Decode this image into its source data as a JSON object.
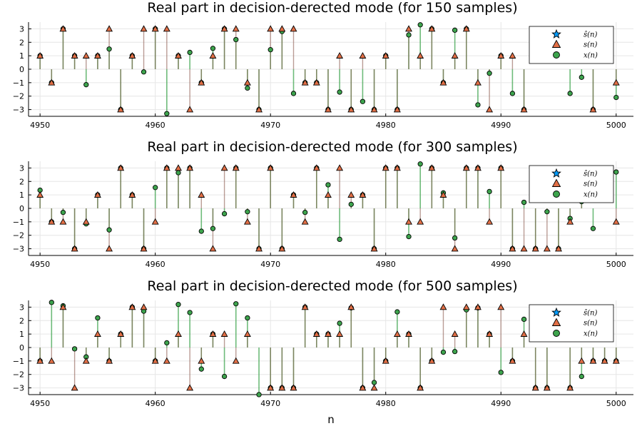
{
  "colors": {
    "shat": "#009af9",
    "s": "#e26f46",
    "x": "#3da44d",
    "grid": "#e6e6e6",
    "axis": "#000000"
  },
  "chart_data": [
    {
      "type": "scatter",
      "title": "Real part in decision-derected mode (for 150 samples)",
      "xlabel": "",
      "xlim": [
        4949,
        5001.5
      ],
      "ylim": [
        -3.5,
        3.5
      ],
      "xticks": [
        4950,
        4960,
        4970,
        4980,
        4990,
        5000
      ],
      "yticks": [
        -3,
        -2,
        -1,
        0,
        1,
        2,
        3
      ],
      "grid": true,
      "legend": "top-right",
      "legend_entries": [
        "ŝ(n)",
        "s(n)",
        "x(n)"
      ],
      "x": [
        4950,
        4951,
        4952,
        4953,
        4954,
        4955,
        4956,
        4957,
        4958,
        4959,
        4960,
        4961,
        4962,
        4963,
        4964,
        4965,
        4966,
        4967,
        4968,
        4969,
        4970,
        4971,
        4972,
        4973,
        4974,
        4975,
        4976,
        4977,
        4978,
        4979,
        4980,
        4981,
        4982,
        4983,
        4984,
        4985,
        4986,
        4987,
        4988,
        4989,
        4990,
        4991,
        4992,
        4993,
        4994,
        4995,
        4996,
        4997,
        4998,
        4999,
        5000
      ],
      "s": [
        1,
        -1,
        3,
        1,
        1,
        1,
        3,
        -3,
        1,
        3,
        3,
        3,
        1,
        -3,
        -1,
        1,
        3,
        3,
        -1,
        -3,
        3,
        3,
        3,
        -1,
        -1,
        -3,
        1,
        -3,
        1,
        -3,
        1,
        -3,
        3,
        1,
        3,
        -1,
        1,
        3,
        -1,
        -3,
        1,
        1,
        -3,
        null,
        null,
        null,
        null,
        null,
        -3,
        null,
        -1
      ],
      "x_vals": [
        1,
        -1,
        3,
        1,
        -1.15,
        1,
        1.5,
        -3,
        1,
        -0.2,
        3,
        -3.3,
        1,
        1.25,
        -1,
        1.55,
        3,
        2.2,
        -1.4,
        -3,
        1.45,
        2.8,
        -1.8,
        -1,
        -1,
        -3,
        -1.7,
        -3,
        -2.4,
        -3,
        1,
        -3,
        2.55,
        3.3,
        3,
        -1,
        2.9,
        3,
        -2.65,
        -0.3,
        1,
        -1.8,
        -3,
        null,
        null,
        null,
        -1.8,
        -0.6,
        -3,
        null,
        -2.1
      ]
    },
    {
      "type": "scatter",
      "title": "Real part in decision-derected mode (for 300 samples)",
      "xlabel": "",
      "xlim": [
        4949,
        5001.5
      ],
      "ylim": [
        -3.5,
        3.5
      ],
      "xticks": [
        4950,
        4960,
        4970,
        4980,
        4990,
        5000
      ],
      "yticks": [
        -3,
        -2,
        -1,
        0,
        1,
        2,
        3
      ],
      "grid": true,
      "legend": "top-right",
      "legend_entries": [
        "ŝ(n)",
        "s(n)",
        "x(n)"
      ],
      "x": [
        4950,
        4951,
        4952,
        4953,
        4954,
        4955,
        4956,
        4957,
        4958,
        4959,
        4960,
        4961,
        4962,
        4963,
        4964,
        4965,
        4966,
        4967,
        4968,
        4969,
        4970,
        4971,
        4972,
        4973,
        4974,
        4975,
        4976,
        4977,
        4978,
        4979,
        4980,
        4981,
        4982,
        4983,
        4984,
        4985,
        4986,
        4987,
        4988,
        4989,
        4990,
        4991,
        4992,
        4993,
        4994,
        4995,
        4996,
        4997,
        4998,
        4999,
        5000
      ],
      "s": [
        1,
        -1,
        -1,
        -3,
        -1,
        1,
        -3,
        3,
        1,
        -3,
        -1,
        3,
        3,
        3,
        1,
        -3,
        3,
        3,
        -1,
        -3,
        3,
        -3,
        1,
        -1,
        3,
        1,
        3,
        1,
        1,
        -3,
        3,
        3,
        -1,
        -1,
        3,
        1,
        -3,
        3,
        3,
        -1,
        3,
        -3,
        -3,
        -3,
        -3,
        -3,
        -1,
        1,
        null,
        null,
        -1
      ],
      "x_vals": [
        1.35,
        -1,
        -0.3,
        -3,
        -1.15,
        1,
        -1.6,
        3,
        1,
        -3,
        1.55,
        3,
        2.65,
        3,
        -1.7,
        -1.5,
        -0.4,
        3,
        -0.25,
        -3,
        3,
        -3,
        1,
        -0.3,
        3,
        1.75,
        -2.3,
        0.3,
        1,
        -3,
        3,
        3,
        -2.1,
        3.3,
        3,
        1.15,
        -2.2,
        3,
        3,
        1.25,
        3,
        -3,
        0.45,
        -3,
        -0.25,
        -3,
        -0.75,
        0.5,
        -1.5,
        null,
        2.7
      ]
    },
    {
      "type": "scatter",
      "title": "Real part in decision-derected mode (for 500 samples)",
      "xlabel": "n",
      "xlim": [
        4949,
        5001.5
      ],
      "ylim": [
        -3.5,
        3.5
      ],
      "xticks": [
        4950,
        4960,
        4970,
        4980,
        4990,
        5000
      ],
      "yticks": [
        -3,
        -2,
        -1,
        0,
        1,
        2,
        3
      ],
      "grid": true,
      "legend": "top-right",
      "legend_entries": [
        "ŝ(n)",
        "s(n)",
        "x(n)"
      ],
      "x": [
        4950,
        4951,
        4952,
        4953,
        4954,
        4955,
        4956,
        4957,
        4958,
        4959,
        4960,
        4961,
        4962,
        4963,
        4964,
        4965,
        4966,
        4967,
        4968,
        4969,
        4970,
        4971,
        4972,
        4973,
        4974,
        4975,
        4976,
        4977,
        4978,
        4979,
        4980,
        4981,
        4982,
        4983,
        4984,
        4985,
        4986,
        4987,
        4988,
        4989,
        4990,
        4991,
        4992,
        4993,
        4994,
        4995,
        4996,
        4997,
        4998,
        4999,
        5000
      ],
      "s": [
        -1,
        -1,
        3,
        -3,
        -1,
        1,
        -1,
        1,
        3,
        3,
        -1,
        -1,
        1,
        -3,
        -1,
        1,
        1,
        -1,
        1,
        null,
        -3,
        -3,
        -3,
        3,
        1,
        1,
        1,
        3,
        -3,
        -3,
        -1,
        1,
        1,
        -3,
        -1,
        3,
        1,
        3,
        3,
        1,
        3,
        -1,
        1,
        -3,
        -3,
        null,
        -3,
        -1,
        -1,
        -1,
        -1
      ],
      "x_vals": [
        -1,
        3.35,
        3.1,
        -0.1,
        -0.7,
        2.2,
        -1,
        1,
        3,
        2.7,
        -1,
        0.35,
        3.2,
        2.6,
        -1.6,
        1,
        -2.15,
        3.25,
        2.2,
        -3.5,
        -3,
        -3,
        -3,
        3,
        1,
        1,
        1.8,
        2.95,
        -3,
        -2.6,
        -1,
        2.65,
        1,
        -3,
        -1,
        -0.35,
        -0.3,
        2.8,
        2.95,
        1,
        -1.85,
        -1,
        2.1,
        -3,
        -3,
        null,
        -3,
        -2.15,
        -1,
        -1,
        -1
      ]
    }
  ]
}
